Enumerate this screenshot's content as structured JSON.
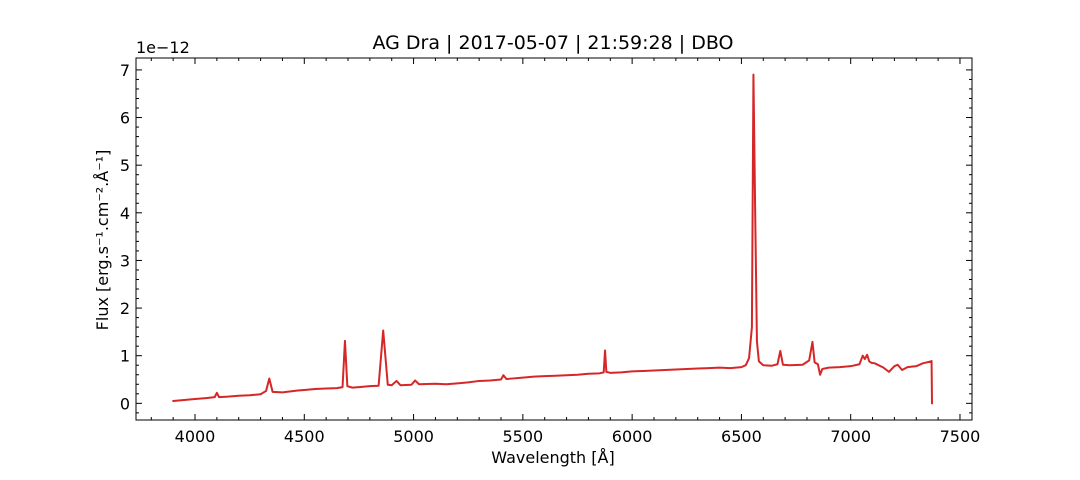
{
  "chart_data": {
    "type": "line",
    "title": "AG Dra | 2017-05-07 | 21:59:28 | DBO",
    "xlabel": "Wavelength [Å]",
    "ylabel": "Flux [erg.s⁻¹.cm⁻².Å⁻¹]",
    "y_scale_factor_label": "1e−12",
    "xlim": [
      3730,
      7555
    ],
    "ylim": [
      -0.35,
      7.25
    ],
    "x_ticks": [
      4000,
      4500,
      5000,
      5500,
      6000,
      6500,
      7000,
      7500
    ],
    "x_tick_labels": [
      "4000",
      "4500",
      "5000",
      "5500",
      "6000",
      "6500",
      "7000",
      "7500"
    ],
    "y_ticks": [
      0,
      1,
      2,
      3,
      4,
      5,
      6,
      7
    ],
    "y_tick_labels": [
      "0",
      "1",
      "2",
      "3",
      "4",
      "5",
      "6",
      "7"
    ],
    "grid": false,
    "legend": "none",
    "series": [
      {
        "color": "#d62728",
        "x": [
          3900,
          3950,
          4000,
          4050,
          4090,
          4100,
          4110,
          4150,
          4200,
          4250,
          4300,
          4325,
          4340,
          4355,
          4400,
          4470,
          4500,
          4550,
          4600,
          4650,
          4675,
          4686,
          4697,
          4720,
          4750,
          4800,
          4840,
          4861,
          4882,
          4900,
          4922,
          4940,
          4990,
          5007,
          5025,
          5100,
          5150,
          5200,
          5250,
          5300,
          5350,
          5400,
          5411,
          5425,
          5450,
          5500,
          5550,
          5600,
          5650,
          5700,
          5750,
          5800,
          5850,
          5870,
          5876,
          5882,
          5900,
          5950,
          6000,
          6050,
          6100,
          6150,
          6200,
          6250,
          6300,
          6350,
          6400,
          6450,
          6500,
          6520,
          6535,
          6548,
          6555,
          6563,
          6571,
          6580,
          6600,
          6640,
          6665,
          6678,
          6690,
          6720,
          6780,
          6810,
          6825,
          6835,
          6850,
          6860,
          6870,
          6900,
          6950,
          7000,
          7040,
          7055,
          7065,
          7075,
          7085,
          7095,
          7110,
          7150,
          7175,
          7200,
          7215,
          7235,
          7260,
          7300,
          7330,
          7368,
          7370,
          7372
        ],
        "y": [
          0.05,
          0.07,
          0.09,
          0.11,
          0.13,
          0.22,
          0.13,
          0.14,
          0.16,
          0.17,
          0.19,
          0.26,
          0.52,
          0.24,
          0.23,
          0.27,
          0.28,
          0.3,
          0.31,
          0.32,
          0.34,
          1.31,
          0.36,
          0.33,
          0.34,
          0.36,
          0.37,
          1.53,
          0.39,
          0.38,
          0.47,
          0.38,
          0.39,
          0.48,
          0.4,
          0.41,
          0.4,
          0.42,
          0.44,
          0.47,
          0.48,
          0.5,
          0.59,
          0.51,
          0.52,
          0.54,
          0.56,
          0.57,
          0.58,
          0.59,
          0.6,
          0.62,
          0.63,
          0.65,
          1.11,
          0.66,
          0.64,
          0.65,
          0.67,
          0.68,
          0.69,
          0.7,
          0.71,
          0.72,
          0.73,
          0.74,
          0.75,
          0.74,
          0.76,
          0.8,
          0.95,
          1.6,
          6.9,
          4.0,
          1.3,
          0.88,
          0.8,
          0.79,
          0.82,
          1.1,
          0.81,
          0.8,
          0.81,
          0.9,
          1.29,
          0.86,
          0.82,
          0.6,
          0.72,
          0.75,
          0.76,
          0.78,
          0.82,
          1.0,
          0.93,
          1.02,
          0.88,
          0.85,
          0.84,
          0.75,
          0.66,
          0.78,
          0.81,
          0.7,
          0.76,
          0.78,
          0.84,
          0.88,
          0.89,
          0.0
        ]
      }
    ]
  }
}
